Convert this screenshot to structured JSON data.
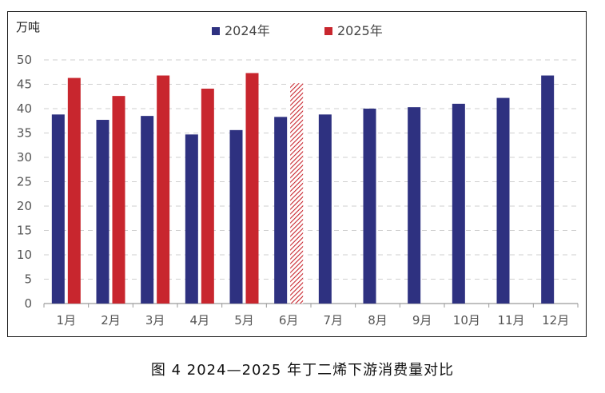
{
  "caption": "图 4  2024—2025 年丁二烯下游消费量对比",
  "chart_data": {
    "type": "bar",
    "ylabel": "万吨",
    "xlabel": "",
    "ylim": [
      0,
      50
    ],
    "yticks": [
      0,
      5,
      10,
      15,
      20,
      25,
      30,
      35,
      40,
      45,
      50
    ],
    "grid": true,
    "legend_position": "top-center",
    "categories": [
      "1月",
      "2月",
      "3月",
      "4月",
      "5月",
      "6月",
      "7月",
      "8月",
      "9月",
      "10月",
      "11月",
      "12月"
    ],
    "series": [
      {
        "name": "2024年",
        "color": "#2e3180",
        "values": [
          38.8,
          37.7,
          38.5,
          34.7,
          35.6,
          38.3,
          38.8,
          40.0,
          40.3,
          41.0,
          42.2,
          46.8
        ]
      },
      {
        "name": "2025年",
        "color": "#c8262e",
        "values": [
          46.3,
          42.6,
          46.8,
          44.1,
          47.3,
          45.2,
          null,
          null,
          null,
          null,
          null,
          null
        ],
        "hatched_categories": [
          "6月"
        ]
      }
    ]
  }
}
